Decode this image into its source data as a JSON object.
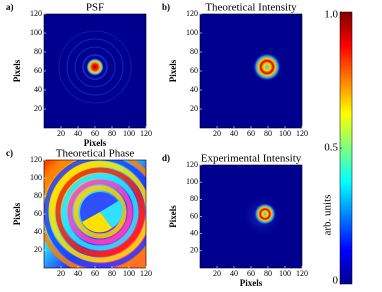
{
  "chart_data": [
    {
      "type": "image",
      "panel": "a)",
      "title": "PSF",
      "xlabel": "Pixels",
      "ylabel": "Pixels",
      "xlim": [
        0,
        120
      ],
      "ylim": [
        0,
        120
      ],
      "xticks": [
        20,
        40,
        60,
        80,
        100,
        120
      ],
      "yticks": [
        20,
        40,
        60,
        80,
        100,
        120
      ]
    },
    {
      "type": "image",
      "panel": "b)",
      "title": "Theoretical Intensity",
      "ylabel": "Pixels",
      "xlim": [
        0,
        120
      ],
      "ylim": [
        0,
        120
      ],
      "xticks": [
        20,
        40,
        60,
        80,
        100,
        120
      ],
      "yticks": [
        20,
        40,
        60,
        80,
        100,
        120
      ]
    },
    {
      "type": "image",
      "panel": "c)",
      "title": "Theoretical Phase",
      "ylabel": "Pixels",
      "xlim": [
        0,
        120
      ],
      "ylim": [
        0,
        120
      ],
      "xticks": [
        20,
        40,
        60,
        80,
        100,
        120
      ],
      "yticks": [
        20,
        40,
        60,
        80,
        100,
        120
      ]
    },
    {
      "type": "image",
      "panel": "d)",
      "title": "Experimental Intensity",
      "xlabel": "Pixels",
      "ylabel": "Pixels",
      "xlim": [
        0,
        120
      ],
      "ylim": [
        0,
        120
      ],
      "xticks": [
        20,
        40,
        60,
        80,
        100,
        120
      ],
      "yticks": [
        20,
        40,
        60,
        80,
        100,
        120
      ]
    },
    {
      "type": "colorbar",
      "label": "arb. units",
      "ylim": [
        0,
        1
      ],
      "yticks": [
        0,
        0.5,
        {
          "value": 1,
          "label": "1.0"
        }
      ]
    }
  ]
}
